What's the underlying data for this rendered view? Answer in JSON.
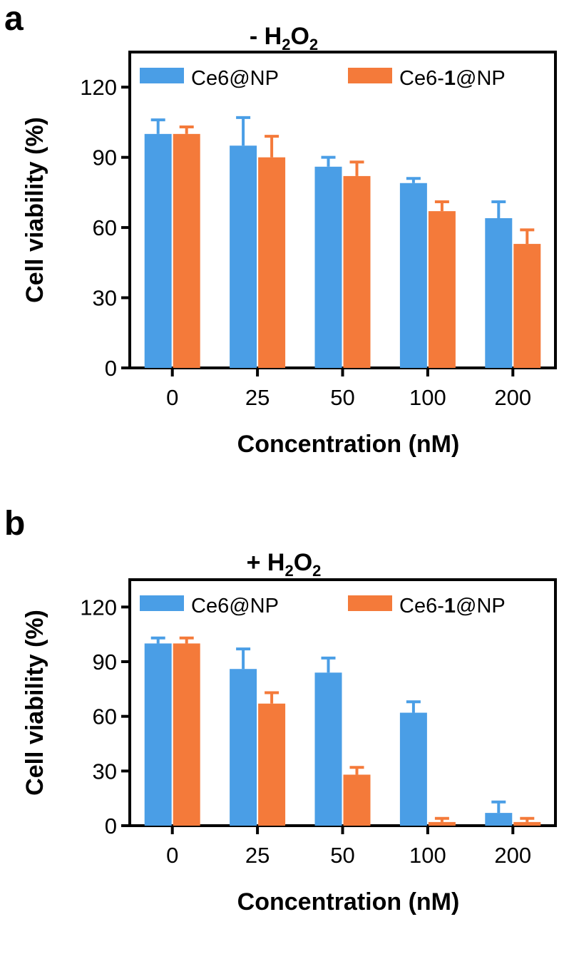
{
  "figure": {
    "colors": {
      "series_a": "#4a9ee6",
      "series_b": "#f47a3a",
      "axis": "#000000"
    }
  },
  "chart_data": [
    {
      "type": "bar",
      "panel": "a",
      "title_prefix": "- ",
      "title": "H",
      "title_sub1": "2",
      "title_mid": "O",
      "title_sub2": "2",
      "xlabel": "Concentration (nM)",
      "ylabel": "Cell viability (%)",
      "ylim": [
        0,
        135
      ],
      "yticks": [
        0,
        30,
        60,
        90,
        120
      ],
      "ytick_labels": [
        "0",
        "30",
        "60",
        "90",
        "120"
      ],
      "categories": [
        "0",
        "25",
        "50",
        "100",
        "200"
      ],
      "legend": [
        {
          "pre": "Ce6@NP",
          "bold": "",
          "post": ""
        },
        {
          "pre": "Ce6-",
          "bold": "1",
          "post": "@NP"
        }
      ],
      "series": [
        {
          "name": "Ce6@NP",
          "values": [
            100,
            95,
            86,
            79,
            64
          ],
          "errors": [
            6,
            12,
            4,
            2,
            7
          ]
        },
        {
          "name": "Ce6-1@NP",
          "values": [
            100,
            90,
            82,
            67,
            53
          ],
          "errors": [
            3,
            9,
            6,
            4,
            6
          ]
        }
      ]
    },
    {
      "type": "bar",
      "panel": "b",
      "title_prefix": "+ ",
      "title": "H",
      "title_sub1": "2",
      "title_mid": "O",
      "title_sub2": "2",
      "xlabel": "Concentration (nM)",
      "ylabel": "Cell viability (%)",
      "ylim": [
        0,
        135
      ],
      "yticks": [
        0,
        30,
        60,
        90,
        120
      ],
      "ytick_labels": [
        "0",
        "30",
        "60",
        "90",
        "120"
      ],
      "categories": [
        "0",
        "25",
        "50",
        "100",
        "200"
      ],
      "legend": [
        {
          "pre": "Ce6@NP",
          "bold": "",
          "post": ""
        },
        {
          "pre": "Ce6-",
          "bold": "1",
          "post": "@NP"
        }
      ],
      "series": [
        {
          "name": "Ce6@NP",
          "values": [
            100,
            86,
            84,
            62,
            7
          ],
          "errors": [
            3,
            11,
            8,
            6,
            6
          ]
        },
        {
          "name": "Ce6-1@NP",
          "values": [
            100,
            67,
            28,
            2,
            2
          ],
          "errors": [
            3,
            6,
            4,
            2,
            2
          ]
        }
      ]
    }
  ]
}
